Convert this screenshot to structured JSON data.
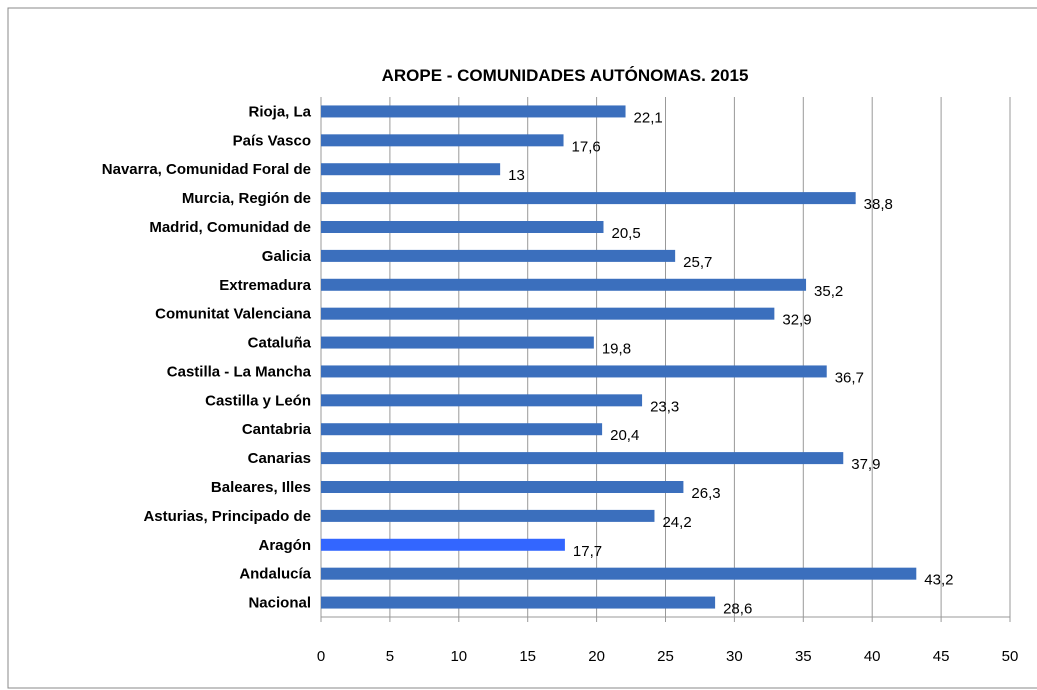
{
  "chart_data": {
    "type": "bar",
    "orientation": "horizontal",
    "title": "AROPE - COMUNIDADES AUTÓNOMAS. 2015",
    "categories": [
      "Rioja, La",
      "País Vasco",
      "Navarra, Comunidad Foral de",
      "Murcia, Región de",
      "Madrid, Comunidad de",
      "Galicia",
      "Extremadura",
      "Comunitat Valenciana",
      "Cataluña",
      "Castilla - La Mancha",
      "Castilla y León",
      "Cantabria",
      "Canarias",
      "Baleares, Illes",
      "Asturias, Principado de",
      "Aragón",
      "Andalucía",
      "Nacional"
    ],
    "values": [
      22.1,
      17.6,
      13,
      38.8,
      20.5,
      25.7,
      35.2,
      32.9,
      19.8,
      36.7,
      23.3,
      20.4,
      37.9,
      26.3,
      24.2,
      17.7,
      43.2,
      28.6
    ],
    "value_labels": [
      "22,1",
      "17,6",
      "13",
      "38,8",
      "20,5",
      "25,7",
      "35,2",
      "32,9",
      "19,8",
      "36,7",
      "23,3",
      "20,4",
      "37,9",
      "26,3",
      "24,2",
      "17,7",
      "43,2",
      "28,6"
    ],
    "colors": [
      "#3b6fbd",
      "#3b6fbd",
      "#3b6fbd",
      "#3b6fbd",
      "#3b6fbd",
      "#3b6fbd",
      "#3b6fbd",
      "#3b6fbd",
      "#3b6fbd",
      "#3b6fbd",
      "#3b6fbd",
      "#3b6fbd",
      "#3b6fbd",
      "#3b6fbd",
      "#3b6fbd",
      "#3366ff",
      "#3b6fbd",
      "#3b6fbd"
    ],
    "xlim": [
      0,
      50
    ],
    "xticks": [
      0,
      5,
      10,
      15,
      20,
      25,
      30,
      35,
      40,
      45,
      50
    ],
    "grid": true
  }
}
